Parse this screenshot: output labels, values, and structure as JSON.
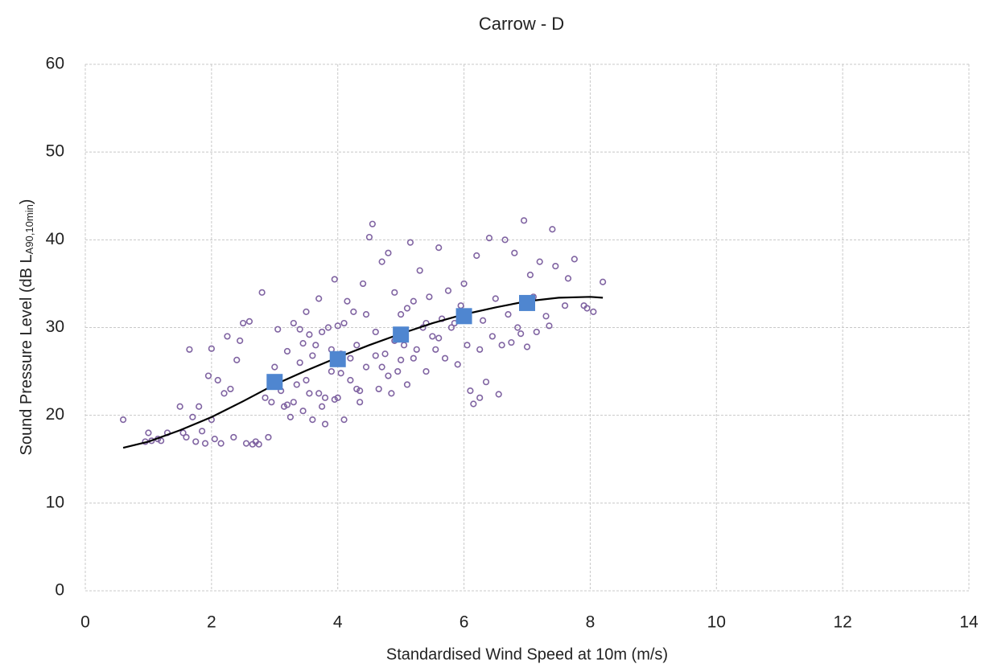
{
  "chart_data": {
    "type": "scatter",
    "title": "Carrow - D",
    "xlabel": "Standardised Wind Speed at 10m (m/s)",
    "ylabel": "Sound Pressure Level (dB L",
    "ylabel_sub": "A90,10min",
    "ylabel_end": ")",
    "xlim": [
      0,
      14
    ],
    "xticks": [
      0,
      2,
      4,
      6,
      8,
      10,
      12,
      14
    ],
    "ylim": [
      0,
      60
    ],
    "yticks": [
      0,
      10,
      20,
      30,
      40,
      50,
      60
    ],
    "grid": true,
    "series": [
      {
        "marker": "circle",
        "color": "#8064a2",
        "x": [
          0.6,
          0.95,
          1,
          1.05,
          1.15,
          1.2,
          1.3,
          1.5,
          1.55,
          1.6,
          1.65,
          1.7,
          1.75,
          1.8,
          1.85,
          1.9,
          1.95,
          2,
          2,
          2.05,
          2.1,
          2.15,
          2.2,
          2.25,
          2.3,
          2.35,
          2.4,
          2.45,
          2.5,
          2.55,
          2.6,
          2.65,
          2.7,
          2.75,
          2.8,
          2.85,
          2.9,
          2.95,
          3,
          3.05,
          3.1,
          3.15,
          3.2,
          3.25,
          3.3,
          3.35,
          3.4,
          3.45,
          3.5,
          3.55,
          3.6,
          3.65,
          3.7,
          3.75,
          3.8,
          3.85,
          3.9,
          3.95,
          4,
          4.05,
          4.1,
          4.15,
          4.2,
          4.25,
          4.3,
          4.35,
          4.4,
          4.45,
          4.5,
          4.55,
          4.6,
          4.65,
          4.7,
          4.75,
          4.8,
          4.85,
          4.9,
          4.95,
          5,
          5.05,
          5.1,
          5.15,
          5.2,
          5.25,
          5.3,
          5.35,
          5.4,
          5.45,
          5.5,
          5.55,
          5.6,
          5.65,
          5.7,
          5.75,
          5.8,
          5.9,
          5.95,
          6,
          6.05,
          6.1,
          6.15,
          6.2,
          6.25,
          6.3,
          6.35,
          6.4,
          6.45,
          6.5,
          6.55,
          6.6,
          6.65,
          6.7,
          6.75,
          6.8,
          6.85,
          6.9,
          6.95,
          7,
          7.05,
          7.1,
          7.15,
          7.2,
          7.3,
          7.35,
          7.4,
          7.45,
          7.6,
          7.65,
          7.75,
          7.9,
          7.95,
          8.05,
          8.2,
          3.2,
          3.5,
          3.7,
          3.9,
          4,
          4.2,
          4.6,
          4.9,
          5.2,
          3.4,
          3.8,
          4.3,
          4.8,
          5,
          5.4,
          3.3,
          3.6,
          4.1,
          3.45,
          3.75,
          4.05,
          4.45,
          4.7,
          5.1,
          5.6,
          5.85,
          6.25,
          3.55,
          3.95,
          4.35
        ],
        "values": [
          19.5,
          17,
          18,
          17.1,
          17.3,
          17.1,
          18,
          21,
          18,
          17.5,
          27.5,
          19.8,
          17,
          21,
          18.2,
          16.8,
          24.5,
          19.5,
          27.6,
          17.3,
          24,
          16.8,
          22.5,
          29,
          23,
          17.5,
          26.3,
          28.5,
          30.5,
          16.8,
          30.7,
          16.7,
          17,
          16.7,
          34,
          22,
          17.5,
          21.5,
          25.5,
          29.8,
          22.8,
          21,
          27.3,
          19.8,
          30.5,
          23.5,
          29.8,
          20.5,
          31.8,
          22.5,
          19.5,
          28,
          33.3,
          21,
          19,
          30,
          25,
          35.5,
          22,
          27,
          30.5,
          33,
          24,
          31.8,
          28,
          21.5,
          35,
          25.5,
          40.3,
          41.8,
          29.5,
          23,
          37.5,
          27,
          38.5,
          22.5,
          34,
          25,
          31.5,
          28,
          23.5,
          39.7,
          33,
          27.5,
          36.5,
          30,
          25,
          33.5,
          29,
          27.5,
          39.1,
          31,
          26.5,
          34.2,
          30,
          25.8,
          32.5,
          35,
          28,
          22.8,
          21.3,
          38.2,
          22,
          30.8,
          23.8,
          40.2,
          29,
          33.3,
          22.4,
          28,
          40,
          31.5,
          28.3,
          38.5,
          30,
          29.3,
          42.2,
          27.8,
          36,
          33.5,
          29.5,
          37.5,
          31.3,
          30.2,
          41.2,
          37,
          32.5,
          35.6,
          37.8,
          32.5,
          32.2,
          31.8,
          35.2,
          21.2,
          24,
          22.5,
          27.5,
          30.2,
          26.5,
          26.8,
          28.5,
          26.5,
          26,
          22,
          23,
          24.5,
          26.3,
          30.5,
          21.5,
          26.8,
          19.5,
          28.2,
          29.5,
          24.8,
          31.5,
          25.5,
          32.2,
          28.8,
          30.5,
          27.5,
          29.2,
          21.8,
          22.8
        ]
      },
      {
        "marker": "line",
        "color": "#000000",
        "x": [
          0.6,
          1,
          1.5,
          2,
          2.5,
          3,
          3.5,
          4,
          4.5,
          5,
          5.5,
          6,
          6.5,
          7,
          7.5,
          8,
          8.2
        ],
        "values": [
          16.3,
          17,
          18.3,
          19.8,
          21.6,
          23.5,
          25.1,
          26.6,
          28,
          29.3,
          30.5,
          31.5,
          32.3,
          33,
          33.4,
          33.5,
          33.4
        ]
      },
      {
        "marker": "square",
        "color": "#4f86d0",
        "x": [
          3,
          4,
          5,
          6,
          7
        ],
        "values": [
          23.8,
          26.4,
          29.2,
          31.3,
          32.8
        ]
      }
    ]
  }
}
